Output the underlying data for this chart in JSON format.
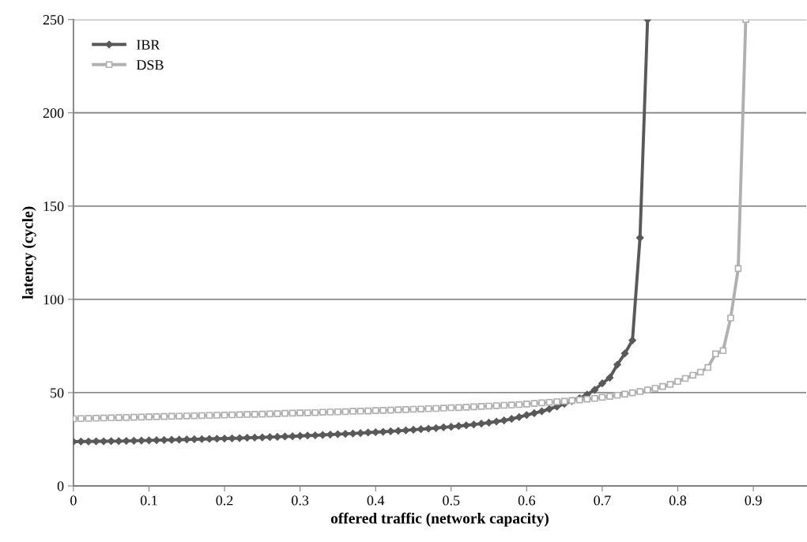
{
  "chart_data": {
    "type": "line",
    "xlabel": "offered traffic (network capacity)",
    "ylabel": "latency (cycle)",
    "xlim": [
      0,
      0.97
    ],
    "xticks": [
      0,
      0.1,
      0.2,
      0.3,
      0.4,
      0.5,
      0.6,
      0.7,
      0.8,
      0.9
    ],
    "ylim": [
      0,
      250
    ],
    "yticks": [
      0,
      50,
      100,
      150,
      200,
      250
    ],
    "grid": "y",
    "legend": "top left",
    "line_style": "solid",
    "series": [
      {
        "name": "IBR",
        "color": "#595959",
        "marker": "diamond",
        "x": [
          0,
          0.01,
          0.02,
          0.03,
          0.04,
          0.05,
          0.06,
          0.07,
          0.08,
          0.09,
          0.1,
          0.11,
          0.12,
          0.13,
          0.14,
          0.15,
          0.16,
          0.17,
          0.18,
          0.19,
          0.2,
          0.21,
          0.22,
          0.23,
          0.24,
          0.25,
          0.26,
          0.27,
          0.28,
          0.29,
          0.3,
          0.31,
          0.32,
          0.33,
          0.34,
          0.35,
          0.36,
          0.37,
          0.38,
          0.39,
          0.4,
          0.41,
          0.42,
          0.43,
          0.44,
          0.45,
          0.46,
          0.47,
          0.48,
          0.49,
          0.5,
          0.51,
          0.52,
          0.53,
          0.54,
          0.55,
          0.56,
          0.57,
          0.58,
          0.59,
          0.6,
          0.61,
          0.62,
          0.63,
          0.64,
          0.65,
          0.66,
          0.67,
          0.68,
          0.69,
          0.7,
          0.71,
          0.72,
          0.73,
          0.74,
          0.75,
          0.76
        ],
        "values": [
          23.7,
          23.8,
          23.8,
          23.9,
          23.9,
          24.0,
          24.0,
          24.1,
          24.2,
          24.3,
          24.4,
          24.5,
          24.6,
          24.7,
          24.8,
          24.9,
          25.0,
          25.1,
          25.2,
          25.3,
          25.4,
          25.5,
          25.6,
          25.8,
          25.9,
          26.0,
          26.2,
          26.3,
          26.5,
          26.6,
          26.8,
          27.0,
          27.1,
          27.3,
          27.5,
          27.7,
          27.9,
          28.1,
          28.3,
          28.6,
          28.8,
          29.0,
          29.3,
          29.5,
          29.8,
          30.1,
          30.4,
          30.7,
          31.0,
          31.4,
          31.7,
          32.1,
          32.5,
          32.9,
          33.4,
          33.9,
          34.5,
          35.1,
          35.9,
          36.9,
          38.0,
          39.0,
          40.0,
          41.2,
          42.5,
          44.0,
          45.5,
          47.0,
          49.0,
          51.5,
          55,
          58,
          65,
          71,
          78,
          133,
          250
        ]
      },
      {
        "name": "DSB",
        "color": "#b0b0b0",
        "marker": "square",
        "x": [
          0,
          0.01,
          0.02,
          0.03,
          0.04,
          0.05,
          0.06,
          0.07,
          0.08,
          0.09,
          0.1,
          0.11,
          0.12,
          0.13,
          0.14,
          0.15,
          0.16,
          0.17,
          0.18,
          0.19,
          0.2,
          0.21,
          0.22,
          0.23,
          0.24,
          0.25,
          0.26,
          0.27,
          0.28,
          0.29,
          0.3,
          0.31,
          0.32,
          0.33,
          0.34,
          0.35,
          0.36,
          0.37,
          0.38,
          0.39,
          0.4,
          0.41,
          0.42,
          0.43,
          0.44,
          0.45,
          0.46,
          0.47,
          0.48,
          0.49,
          0.5,
          0.51,
          0.52,
          0.53,
          0.54,
          0.55,
          0.56,
          0.57,
          0.58,
          0.59,
          0.6,
          0.61,
          0.62,
          0.63,
          0.64,
          0.65,
          0.66,
          0.67,
          0.68,
          0.69,
          0.7,
          0.71,
          0.72,
          0.73,
          0.74,
          0.75,
          0.76,
          0.77,
          0.78,
          0.79,
          0.8,
          0.81,
          0.82,
          0.83,
          0.84,
          0.85,
          0.86,
          0.87,
          0.88,
          0.89
        ],
        "values": [
          36.0,
          36.1,
          36.2,
          36.3,
          36.4,
          36.5,
          36.6,
          36.7,
          36.8,
          36.9,
          37.0,
          37.1,
          37.2,
          37.3,
          37.4,
          37.5,
          37.6,
          37.7,
          37.8,
          37.9,
          38.0,
          38.1,
          38.2,
          38.3,
          38.4,
          38.5,
          38.6,
          38.7,
          38.9,
          39.0,
          39.1,
          39.2,
          39.3,
          39.5,
          39.6,
          39.7,
          39.8,
          40.0,
          40.1,
          40.2,
          40.4,
          40.5,
          40.6,
          40.8,
          40.9,
          41.1,
          41.2,
          41.4,
          41.5,
          41.7,
          41.9,
          42.0,
          42.2,
          42.4,
          42.6,
          42.8,
          43.0,
          43.2,
          43.4,
          43.6,
          43.9,
          44.2,
          44.5,
          44.8,
          45.1,
          45.4,
          45.8,
          46.1,
          46.5,
          46.9,
          47.5,
          48.0,
          48.6,
          49.2,
          49.9,
          50.6,
          51.4,
          52.3,
          53.3,
          54.4,
          56.0,
          57.6,
          59.3,
          61.0,
          63.5,
          70.8,
          72.5,
          90,
          116.5,
          250
        ]
      }
    ]
  }
}
